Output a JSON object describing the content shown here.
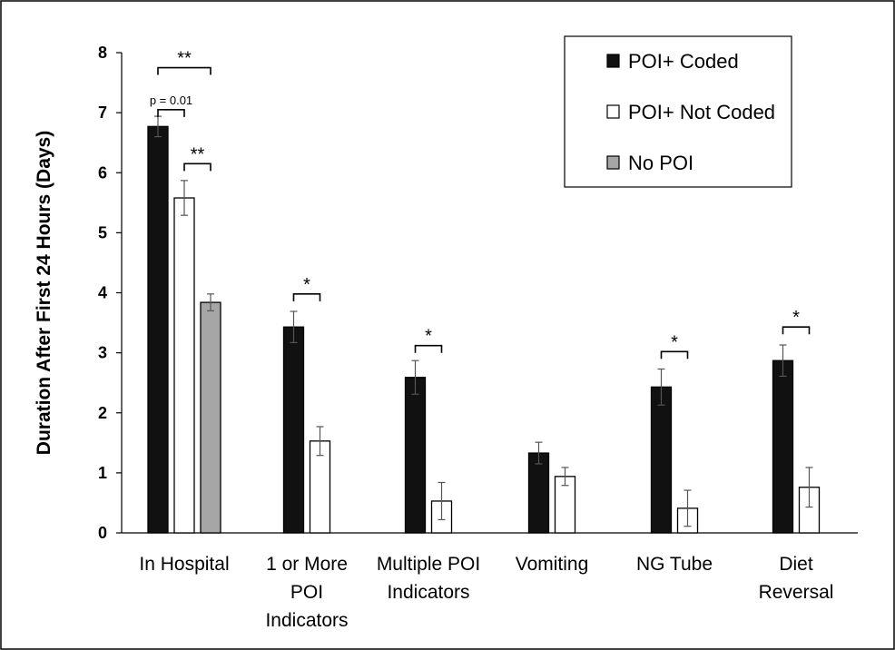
{
  "chart_data": {
    "type": "bar",
    "title": "",
    "xlabel": "",
    "ylabel": "Duration After First 24 Hours (Days)",
    "ylim": [
      0,
      8
    ],
    "yticks": [
      "0",
      "1",
      "2",
      "3",
      "4",
      "5",
      "6",
      "7",
      "8"
    ],
    "grid": false,
    "legend_position": "top-right",
    "categories": [
      [
        "In Hospital"
      ],
      [
        "1 or More",
        "POI",
        "Indicators"
      ],
      [
        "Multiple POI",
        "Indicators"
      ],
      [
        "Vomiting"
      ],
      [
        "NG Tube"
      ],
      [
        "Diet",
        "Reversal"
      ]
    ],
    "series": [
      {
        "name": "POI+ Coded",
        "color": "#111111",
        "values": [
          6.77,
          3.43,
          2.59,
          1.33,
          2.43,
          2.87
        ],
        "errors": [
          0.17,
          0.26,
          0.28,
          0.18,
          0.3,
          0.26
        ]
      },
      {
        "name": "POI+ Not Coded",
        "color": "#ffffff",
        "values": [
          5.58,
          1.53,
          0.53,
          0.94,
          0.41,
          0.76
        ],
        "errors": [
          0.29,
          0.24,
          0.31,
          0.15,
          0.3,
          0.33
        ]
      },
      {
        "name": "No POI",
        "color": "#a6a6a6",
        "values": [
          3.84,
          null,
          null,
          null,
          null,
          null
        ],
        "errors": [
          0.14,
          null,
          null,
          null,
          null,
          null
        ]
      }
    ],
    "annotations": [
      {
        "text": "**",
        "category": 0,
        "from": 0,
        "to": 2,
        "level": 7.75,
        "style": "sig"
      },
      {
        "text": "p = 0.01",
        "category": 0,
        "from": 0,
        "to": 1,
        "level": 7.05,
        "style": "small"
      },
      {
        "text": "**",
        "category": 0,
        "from": 1,
        "to": 2,
        "level": 6.15,
        "style": "sig"
      },
      {
        "text": "*",
        "category": 1,
        "from": 0,
        "to": 1,
        "level": 3.98,
        "style": "sig"
      },
      {
        "text": "*",
        "category": 2,
        "from": 0,
        "to": 1,
        "level": 3.12,
        "style": "sig"
      },
      {
        "text": "*",
        "category": 4,
        "from": 0,
        "to": 1,
        "level": 3.02,
        "style": "sig"
      },
      {
        "text": "*",
        "category": 5,
        "from": 0,
        "to": 1,
        "level": 3.43,
        "style": "sig"
      }
    ]
  }
}
